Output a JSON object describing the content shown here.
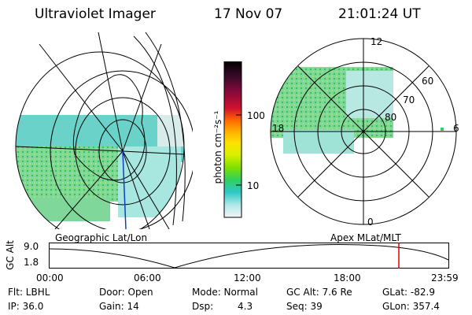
{
  "header": {
    "instrument": "Ultraviolet Imager",
    "date": "17 Nov 07",
    "time": "21:01:24 UT"
  },
  "colorbar": {
    "unit_label": "photon cm⁻²s⁻¹",
    "ticks": [
      "100",
      "10"
    ],
    "colors": [
      "#000000",
      "#3a0a2a",
      "#8a0a3a",
      "#d01030",
      "#ff6a00",
      "#ffb000",
      "#ffe000",
      "#d8f000",
      "#7fe000",
      "#30d060",
      "#30c8c8",
      "#b0e8e8",
      "#f4f4f4"
    ]
  },
  "geo_map": {
    "caption": "Geographic Lat/Lon"
  },
  "polar_plot": {
    "caption": "Apex MLat/MLT",
    "mlt_labels": {
      "top": "12",
      "left": "18",
      "right": "6",
      "bottom": "0"
    },
    "lat_labels": [
      "60",
      "70",
      "80"
    ]
  },
  "timeline": {
    "ylabel": "GC Alt",
    "yvals": [
      "9.0",
      "1.8"
    ],
    "xticks": [
      "00:00",
      "06:00",
      "12:00",
      "18:00",
      "23:59"
    ],
    "marker_color": "#e00000"
  },
  "status": {
    "filter": "Flt: LBHL",
    "ip": "IP: 36.0",
    "door": "Door: Open",
    "gain": "Gain: 14",
    "mode": "Mode: Normal",
    "dsp_label": "Dsp:",
    "dsp_value": "4.3",
    "gc_alt": "GC Alt: 7.6 Re",
    "seq": "Seq: 39",
    "glat": "GLat: -82.9",
    "glon": "GLon: 357.4"
  }
}
